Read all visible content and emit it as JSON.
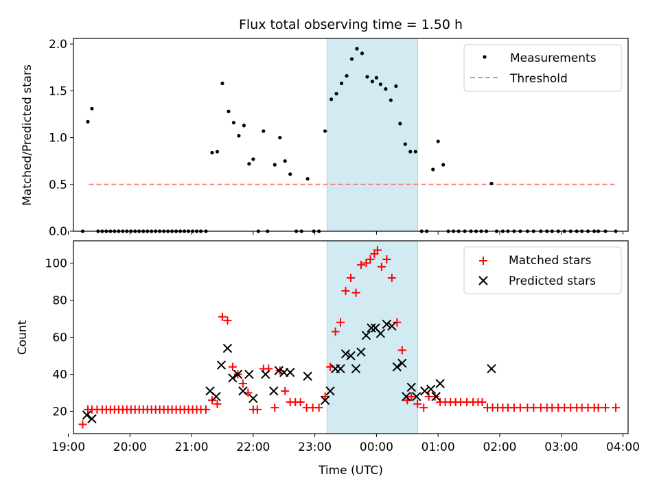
{
  "figure": {
    "title": "Flux total observing time = 1.50 h"
  },
  "chart_data": [
    {
      "type": "scatter",
      "ylabel": "Matched/Predicted stars",
      "ylim": [
        0,
        2.06
      ],
      "xlim": [
        "19:05",
        "04:05"
      ],
      "grid": false,
      "legend_position": "top-right",
      "yticks": [
        "0.0",
        "0.5",
        "1.0",
        "1.5",
        "2.0"
      ],
      "highlight_span": {
        "from": "23:12",
        "to": "00:40",
        "color": "#add8e6"
      },
      "series": [
        {
          "name": "Measurements",
          "color": "#000000",
          "marker": "dot",
          "points": [
            [
              "19:14",
              0
            ],
            [
              "19:19",
              1.17
            ],
            [
              "19:23",
              1.31
            ],
            [
              "19:29",
              0
            ],
            [
              "19:33",
              0
            ],
            [
              "19:37",
              0
            ],
            [
              "19:41",
              0
            ],
            [
              "19:45",
              0
            ],
            [
              "19:49",
              0
            ],
            [
              "19:53",
              0
            ],
            [
              "19:57",
              0
            ],
            [
              "20:01",
              0
            ],
            [
              "20:05",
              0
            ],
            [
              "20:09",
              0
            ],
            [
              "20:13",
              0
            ],
            [
              "20:17",
              0
            ],
            [
              "20:21",
              0
            ],
            [
              "20:25",
              0
            ],
            [
              "20:29",
              0
            ],
            [
              "20:33",
              0
            ],
            [
              "20:37",
              0
            ],
            [
              "20:41",
              0
            ],
            [
              "20:45",
              0
            ],
            [
              "20:49",
              0
            ],
            [
              "20:53",
              0
            ],
            [
              "20:57",
              0
            ],
            [
              "21:01",
              0
            ],
            [
              "21:05",
              0
            ],
            [
              "21:09",
              0
            ],
            [
              "21:14",
              0
            ],
            [
              "21:20",
              0.84
            ],
            [
              "21:25",
              0.85
            ],
            [
              "21:30",
              1.58
            ],
            [
              "21:36",
              1.28
            ],
            [
              "21:41",
              1.16
            ],
            [
              "21:46",
              1.02
            ],
            [
              "21:51",
              1.13
            ],
            [
              "21:56",
              0.72
            ],
            [
              "22:00",
              0.77
            ],
            [
              "22:05",
              0
            ],
            [
              "22:10",
              1.07
            ],
            [
              "22:14",
              0
            ],
            [
              "22:21",
              0.71
            ],
            [
              "22:26",
              1.0
            ],
            [
              "22:31",
              0.75
            ],
            [
              "22:36",
              0.61
            ],
            [
              "22:42",
              0
            ],
            [
              "22:47",
              0
            ],
            [
              "22:53",
              0.56
            ],
            [
              "22:59",
              0
            ],
            [
              "23:04",
              0
            ],
            [
              "23:10",
              1.07
            ],
            [
              "23:16",
              1.41
            ],
            [
              "23:21",
              1.47
            ],
            [
              "23:26",
              1.58
            ],
            [
              "23:31",
              1.66
            ],
            [
              "23:36",
              1.84
            ],
            [
              "23:41",
              1.95
            ],
            [
              "23:46",
              1.9
            ],
            [
              "23:51",
              1.65
            ],
            [
              "23:56",
              1.6
            ],
            [
              "00:00",
              1.64
            ],
            [
              "00:04",
              1.57
            ],
            [
              "00:09",
              1.52
            ],
            [
              "00:14",
              1.4
            ],
            [
              "00:19",
              1.55
            ],
            [
              "00:23",
              1.15
            ],
            [
              "00:28",
              0.93
            ],
            [
              "00:33",
              0.85
            ],
            [
              "00:38",
              0.85
            ],
            [
              "00:44",
              0
            ],
            [
              "00:49",
              0
            ],
            [
              "00:55",
              0.66
            ],
            [
              "01:00",
              0.96
            ],
            [
              "01:05",
              0.71
            ],
            [
              "01:10",
              0
            ],
            [
              "01:15",
              0
            ],
            [
              "01:20",
              0
            ],
            [
              "01:26",
              0
            ],
            [
              "01:32",
              0
            ],
            [
              "01:37",
              0
            ],
            [
              "01:42",
              0
            ],
            [
              "01:47",
              0
            ],
            [
              "01:52",
              0.51
            ],
            [
              "01:57",
              0
            ],
            [
              "02:03",
              0
            ],
            [
              "02:08",
              0
            ],
            [
              "02:14",
              0
            ],
            [
              "02:20",
              0
            ],
            [
              "02:27",
              0
            ],
            [
              "02:33",
              0
            ],
            [
              "02:40",
              0
            ],
            [
              "02:46",
              0
            ],
            [
              "02:51",
              0
            ],
            [
              "02:57",
              0
            ],
            [
              "03:03",
              0
            ],
            [
              "03:09",
              0
            ],
            [
              "03:15",
              0
            ],
            [
              "03:20",
              0
            ],
            [
              "03:26",
              0
            ],
            [
              "03:32",
              0
            ],
            [
              "03:36",
              0
            ],
            [
              "03:43",
              0
            ],
            [
              "03:53",
              0
            ]
          ]
        },
        {
          "name": "Threshold",
          "color": "#f08080",
          "marker": "dashed-line",
          "points": [
            [
              "19:20",
              0.5
            ],
            [
              "03:52",
              0.5
            ]
          ]
        }
      ]
    },
    {
      "type": "scatter",
      "xlabel": "Time (UTC)",
      "ylabel": "Count",
      "ylim": [
        8,
        112
      ],
      "xlim": [
        "19:05",
        "04:05"
      ],
      "grid": false,
      "legend_position": "top-right",
      "yticks": [
        "20",
        "40",
        "60",
        "80",
        "100"
      ],
      "xticks": [
        "19:00",
        "20:00",
        "21:00",
        "22:00",
        "23:00",
        "00:00",
        "01:00",
        "02:00",
        "03:00",
        "04:00"
      ],
      "highlight_span": {
        "from": "23:12",
        "to": "00:40",
        "color": "#add8e6"
      },
      "series": [
        {
          "name": "Matched stars",
          "color": "#ff0000",
          "marker": "plus",
          "points": [
            [
              "19:14",
              13
            ],
            [
              "19:19",
              21
            ],
            [
              "19:23",
              21
            ],
            [
              "19:28",
              21
            ],
            [
              "19:33",
              21
            ],
            [
              "19:37",
              21
            ],
            [
              "19:41",
              21
            ],
            [
              "19:45",
              21
            ],
            [
              "19:49",
              21
            ],
            [
              "19:53",
              21
            ],
            [
              "19:57",
              21
            ],
            [
              "20:01",
              21
            ],
            [
              "20:05",
              21
            ],
            [
              "20:09",
              21
            ],
            [
              "20:13",
              21
            ],
            [
              "20:17",
              21
            ],
            [
              "20:21",
              21
            ],
            [
              "20:25",
              21
            ],
            [
              "20:29",
              21
            ],
            [
              "20:33",
              21
            ],
            [
              "20:37",
              21
            ],
            [
              "20:41",
              21
            ],
            [
              "20:45",
              21
            ],
            [
              "20:49",
              21
            ],
            [
              "20:53",
              21
            ],
            [
              "20:57",
              21
            ],
            [
              "21:01",
              21
            ],
            [
              "21:05",
              21
            ],
            [
              "21:09",
              21
            ],
            [
              "21:14",
              21
            ],
            [
              "21:20",
              26
            ],
            [
              "21:25",
              24
            ],
            [
              "21:30",
              71
            ],
            [
              "21:35",
              69
            ],
            [
              "21:40",
              44
            ],
            [
              "21:45",
              40
            ],
            [
              "21:50",
              35
            ],
            [
              "21:55",
              30
            ],
            [
              "22:00",
              21
            ],
            [
              "22:04",
              21
            ],
            [
              "22:10",
              43
            ],
            [
              "22:15",
              43
            ],
            [
              "22:21",
              22
            ],
            [
              "22:26",
              42
            ],
            [
              "22:31",
              31
            ],
            [
              "22:36",
              25
            ],
            [
              "22:41",
              25
            ],
            [
              "22:46",
              25
            ],
            [
              "22:52",
              22
            ],
            [
              "22:58",
              22
            ],
            [
              "23:04",
              22
            ],
            [
              "23:10",
              28
            ],
            [
              "23:15",
              44
            ],
            [
              "23:20",
              63
            ],
            [
              "23:25",
              68
            ],
            [
              "23:30",
              85
            ],
            [
              "23:35",
              92
            ],
            [
              "23:40",
              84
            ],
            [
              "23:45",
              99
            ],
            [
              "23:50",
              100
            ],
            [
              "23:54",
              102
            ],
            [
              "23:58",
              105
            ],
            [
              "00:01",
              107
            ],
            [
              "00:05",
              98
            ],
            [
              "00:10",
              102
            ],
            [
              "00:15",
              92
            ],
            [
              "00:20",
              68
            ],
            [
              "00:25",
              53
            ],
            [
              "00:30",
              26
            ],
            [
              "00:34",
              28
            ],
            [
              "00:40",
              24
            ],
            [
              "00:46",
              22
            ],
            [
              "00:51",
              28
            ],
            [
              "00:57",
              28
            ],
            [
              "01:02",
              25
            ],
            [
              "01:07",
              25
            ],
            [
              "01:12",
              25
            ],
            [
              "01:17",
              25
            ],
            [
              "01:22",
              25
            ],
            [
              "01:28",
              25
            ],
            [
              "01:34",
              25
            ],
            [
              "01:39",
              25
            ],
            [
              "01:43",
              25
            ],
            [
              "01:48",
              22
            ],
            [
              "01:53",
              22
            ],
            [
              "01:58",
              22
            ],
            [
              "02:03",
              22
            ],
            [
              "02:08",
              22
            ],
            [
              "02:14",
              22
            ],
            [
              "02:20",
              22
            ],
            [
              "02:27",
              22
            ],
            [
              "02:33",
              22
            ],
            [
              "02:40",
              22
            ],
            [
              "02:46",
              22
            ],
            [
              "02:51",
              22
            ],
            [
              "02:57",
              22
            ],
            [
              "03:03",
              22
            ],
            [
              "03:09",
              22
            ],
            [
              "03:15",
              22
            ],
            [
              "03:20",
              22
            ],
            [
              "03:26",
              22
            ],
            [
              "03:32",
              22
            ],
            [
              "03:36",
              22
            ],
            [
              "03:43",
              22
            ],
            [
              "03:53",
              22
            ]
          ]
        },
        {
          "name": "Predicted stars",
          "color": "#000000",
          "marker": "x",
          "points": [
            [
              "19:18",
              18
            ],
            [
              "19:23",
              16
            ],
            [
              "21:18",
              31
            ],
            [
              "21:24",
              28
            ],
            [
              "21:29",
              45
            ],
            [
              "21:35",
              54
            ],
            [
              "21:40",
              38
            ],
            [
              "21:45",
              40
            ],
            [
              "21:50",
              31
            ],
            [
              "21:56",
              40
            ],
            [
              "22:00",
              27
            ],
            [
              "22:12",
              40
            ],
            [
              "22:20",
              31
            ],
            [
              "22:25",
              42
            ],
            [
              "22:30",
              41
            ],
            [
              "22:36",
              41
            ],
            [
              "22:53",
              39
            ],
            [
              "23:10",
              26
            ],
            [
              "23:15",
              31
            ],
            [
              "23:20",
              43
            ],
            [
              "23:25",
              43
            ],
            [
              "23:30",
              51
            ],
            [
              "23:35",
              50
            ],
            [
              "23:40",
              43
            ],
            [
              "23:45",
              52
            ],
            [
              "23:50",
              61
            ],
            [
              "23:55",
              65
            ],
            [
              "23:59",
              65
            ],
            [
              "00:04",
              62
            ],
            [
              "00:10",
              67
            ],
            [
              "00:15",
              66
            ],
            [
              "00:20",
              44
            ],
            [
              "00:25",
              46
            ],
            [
              "00:29",
              28
            ],
            [
              "00:34",
              33
            ],
            [
              "00:39",
              28
            ],
            [
              "00:47",
              31
            ],
            [
              "00:53",
              32
            ],
            [
              "00:58",
              28
            ],
            [
              "01:02",
              35
            ],
            [
              "01:52",
              43
            ]
          ]
        }
      ]
    }
  ]
}
